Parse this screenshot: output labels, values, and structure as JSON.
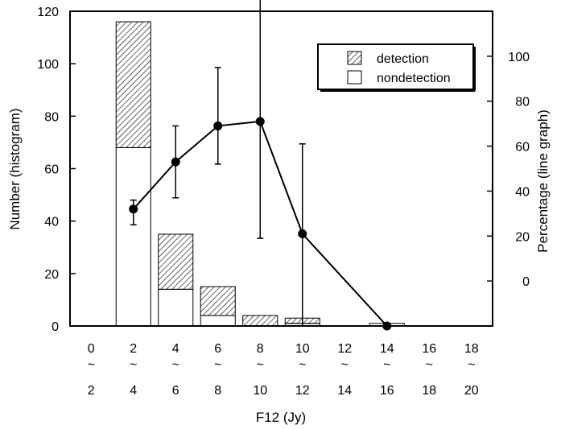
{
  "chart_data": {
    "type": "bar",
    "xlabel": "F12 (Jy)",
    "ylabel_left": "Number (histogram)",
    "ylabel_right": "Percentage (line graph)",
    "ylim_left": [
      0,
      120
    ],
    "yticks_left": [
      "0",
      "20",
      "40",
      "60",
      "80",
      "100",
      "120"
    ],
    "ylim_right": [
      -20,
      120
    ],
    "yticks_right": [
      "0",
      "20",
      "40",
      "60",
      "80",
      "100"
    ],
    "categories": [
      {
        "low": "0",
        "sep": "~",
        "high": "2"
      },
      {
        "low": "2",
        "sep": "~",
        "high": "4"
      },
      {
        "low": "4",
        "sep": "~",
        "high": "6"
      },
      {
        "low": "6",
        "sep": "~",
        "high": "8"
      },
      {
        "low": "8",
        "sep": "~",
        "high": "10"
      },
      {
        "low": "10",
        "sep": "~",
        "high": "12"
      },
      {
        "low": "12",
        "sep": "~",
        "high": "14"
      },
      {
        "low": "14",
        "sep": "~",
        "high": "16"
      },
      {
        "low": "16",
        "sep": "~",
        "high": "18"
      },
      {
        "low": "18",
        "sep": "~",
        "high": "20"
      }
    ],
    "series": [
      {
        "name": "detection",
        "values": [
          0,
          48,
          21,
          11,
          4,
          2,
          0,
          0,
          0,
          0
        ]
      },
      {
        "name": "nondetection",
        "values": [
          0,
          68,
          14,
          4,
          0,
          1,
          0,
          1,
          0,
          0
        ]
      }
    ],
    "line": {
      "x_index": [
        1,
        2,
        3,
        4,
        5,
        7
      ],
      "values": [
        32,
        53,
        69,
        71,
        21,
        -20
      ],
      "err_low": [
        25,
        37,
        52,
        19,
        -20,
        -20
      ],
      "err_high": [
        36,
        69,
        95,
        128,
        61,
        -20
      ]
    },
    "legend": {
      "position": "top-right"
    }
  }
}
